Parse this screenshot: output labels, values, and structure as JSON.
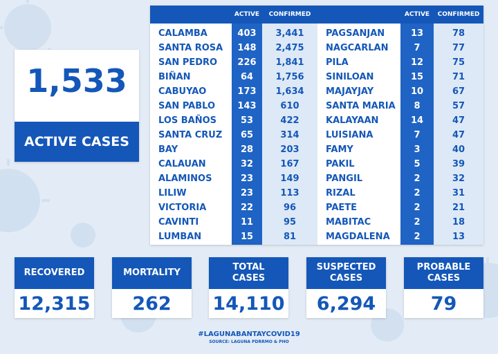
{
  "active": {
    "number": "1,533",
    "label": "ACTIVE CASES"
  },
  "table": {
    "headers": {
      "active": "ACTIVE",
      "confirmed": "CONFIRMED"
    },
    "left": [
      {
        "name": "CALAMBA",
        "active": "403",
        "confirmed": "3,441"
      },
      {
        "name": "SANTA ROSA",
        "active": "148",
        "confirmed": "2,475"
      },
      {
        "name": "SAN PEDRO",
        "active": "226",
        "confirmed": "1,841"
      },
      {
        "name": "BIÑAN",
        "active": "64",
        "confirmed": "1,756"
      },
      {
        "name": "CABUYAO",
        "active": "173",
        "confirmed": "1,634"
      },
      {
        "name": "SAN PABLO",
        "active": "143",
        "confirmed": "610"
      },
      {
        "name": "LOS BAÑOS",
        "active": "53",
        "confirmed": "422"
      },
      {
        "name": "SANTA CRUZ",
        "active": "65",
        "confirmed": "314"
      },
      {
        "name": "BAY",
        "active": "28",
        "confirmed": "203"
      },
      {
        "name": "CALAUAN",
        "active": "32",
        "confirmed": "167"
      },
      {
        "name": "ALAMINOS",
        "active": "23",
        "confirmed": "149"
      },
      {
        "name": "LILIW",
        "active": "23",
        "confirmed": "113"
      },
      {
        "name": "VICTORIA",
        "active": "22",
        "confirmed": "96"
      },
      {
        "name": "CAVINTI",
        "active": "11",
        "confirmed": "95"
      },
      {
        "name": "LUMBAN",
        "active": "15",
        "confirmed": "81"
      }
    ],
    "right": [
      {
        "name": "PAGSANJAN",
        "active": "13",
        "confirmed": "78"
      },
      {
        "name": "NAGCARLAN",
        "active": "7",
        "confirmed": "77"
      },
      {
        "name": "PILA",
        "active": "12",
        "confirmed": "75"
      },
      {
        "name": "SINILOAN",
        "active": "15",
        "confirmed": "71"
      },
      {
        "name": "MAJAYJAY",
        "active": "10",
        "confirmed": "67"
      },
      {
        "name": "SANTA MARIA",
        "active": "8",
        "confirmed": "57"
      },
      {
        "name": "KALAYAAN",
        "active": "14",
        "confirmed": "47"
      },
      {
        "name": "LUISIANA",
        "active": "7",
        "confirmed": "47"
      },
      {
        "name": "FAMY",
        "active": "3",
        "confirmed": "40"
      },
      {
        "name": "PAKIL",
        "active": "5",
        "confirmed": "39"
      },
      {
        "name": "PANGIL",
        "active": "2",
        "confirmed": "32"
      },
      {
        "name": "RIZAL",
        "active": "2",
        "confirmed": "31"
      },
      {
        "name": "PAETE",
        "active": "2",
        "confirmed": "21"
      },
      {
        "name": "MABITAC",
        "active": "2",
        "confirmed": "18"
      },
      {
        "name": "MAGDALENA",
        "active": "2",
        "confirmed": "13"
      }
    ]
  },
  "stats": [
    {
      "label": "RECOVERED",
      "value": "12,315"
    },
    {
      "label": "MORTALITY",
      "value": "262"
    },
    {
      "label": "TOTAL CASES",
      "value": "14,110"
    },
    {
      "label": "SUSPECTED CASES",
      "value": "6,294"
    },
    {
      "label": "PROBABLE CASES",
      "value": "79"
    }
  ],
  "footer": {
    "hashtag": "#LAGUNABANTAYCOVID19",
    "source": "SOURCE: LAGUNA PDRRMO & PHO"
  },
  "colors": {
    "brand_blue": "#1457b8",
    "light_blue": "#dde9f6",
    "background": "#dfe9f4"
  }
}
